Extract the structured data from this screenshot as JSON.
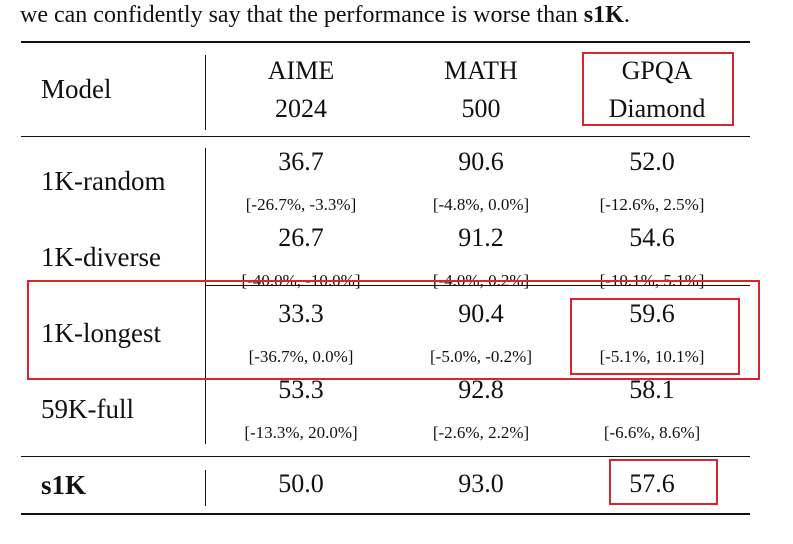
{
  "caption": {
    "prefix": "we can confidently say that the performance is worse than ",
    "bold": "s1K",
    "suffix": "."
  },
  "table": {
    "header": {
      "model": "Model",
      "columns": [
        {
          "line1": "AIME",
          "line2": "2024"
        },
        {
          "line1": "MATH",
          "line2": "500"
        },
        {
          "line1": "GPQA",
          "line2": "Diamond"
        }
      ]
    },
    "rows": [
      {
        "model": "1K-random",
        "values": [
          "36.7",
          "90.6",
          "52.0"
        ],
        "cis": [
          "[-26.7%, -3.3%]",
          "[-4.8%, 0.0%]",
          "[-12.6%, 2.5%]"
        ]
      },
      {
        "model": "1K-diverse",
        "values": [
          "26.7",
          "91.2",
          "54.6"
        ],
        "cis": [
          "[-40.0%, -10.0%]",
          "[-4.0%, 0.2%]",
          "[-10.1%, 5.1%]"
        ]
      },
      {
        "model": "1K-longest",
        "values": [
          "33.3",
          "90.4",
          "59.6"
        ],
        "cis": [
          "[-36.7%, 0.0%]",
          "[-5.0%, -0.2%]",
          "[-5.1%, 10.1%]"
        ]
      },
      {
        "model": "59K-full",
        "values": [
          "53.3",
          "92.8",
          "58.1"
        ],
        "cis": [
          "[-13.3%, 20.0%]",
          "[-2.6%, 2.2%]",
          "[-6.6%, 8.6%]"
        ]
      },
      {
        "model": "s1K",
        "values": [
          "50.0",
          "93.0",
          "57.6"
        ]
      }
    ]
  },
  "highlight_color": "#d9262c"
}
